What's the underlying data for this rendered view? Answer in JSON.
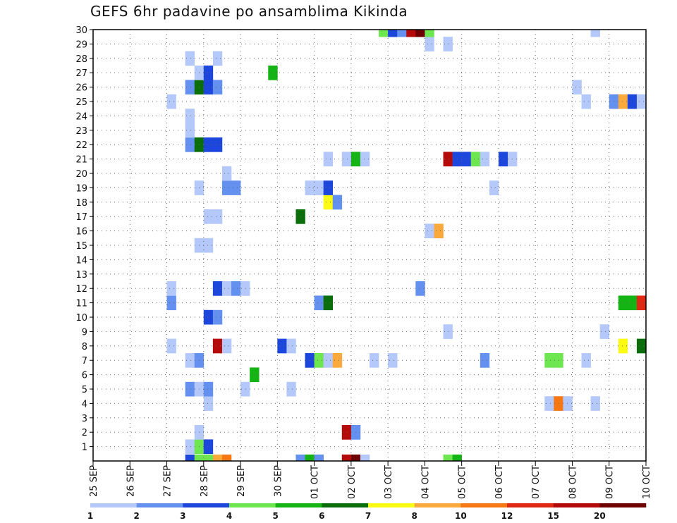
{
  "chart_data": {
    "type": "heatmap",
    "title": "GEFS 6hr padavine po ansamblima Kikinda",
    "y_ticks": [
      "1",
      "2",
      "3",
      "4",
      "5",
      "6",
      "7",
      "8",
      "9",
      "10",
      "11",
      "12",
      "13",
      "14",
      "15",
      "16",
      "17",
      "18",
      "19",
      "20",
      "21",
      "22",
      "23",
      "24",
      "25",
      "26",
      "27",
      "28",
      "29",
      "30"
    ],
    "x_ticks": [
      "25 SEP",
      "26 SEP",
      "27 SEP",
      "28 SEP",
      "29 SEP",
      "30 SEP",
      "01 OCT",
      "02 OCT",
      "03 OCT",
      "04 OCT",
      "05 OCT",
      "06 OCT",
      "07 OCT",
      "08 OCT",
      "09 OCT",
      "10 OCT"
    ],
    "x_range_steps": [
      0,
      60
    ],
    "y_range_members": [
      0,
      30
    ],
    "grid": true,
    "legend_placement": "bottom",
    "legend": {
      "colors": [
        "#b4c8fa",
        "#6490f0",
        "#1c46dc",
        "#6ee650",
        "#14b414",
        "#0a6e0a",
        "#fafa14",
        "#faaa3c",
        "#f57814",
        "#e12814",
        "#b40a0a",
        "#6e0000"
      ],
      "labels": [
        "1",
        "2",
        "3",
        "4",
        "5",
        "6",
        "7",
        "8",
        "10",
        "12",
        "15",
        "20"
      ]
    },
    "cells": [
      {
        "member": 0,
        "step": 10,
        "c": 3
      },
      {
        "member": 0,
        "step": 11,
        "c": 4
      },
      {
        "member": 0,
        "step": 12,
        "c": 4
      },
      {
        "member": 0,
        "step": 13,
        "c": 8
      },
      {
        "member": 0,
        "step": 14,
        "c": 9
      },
      {
        "member": 0,
        "step": 22,
        "c": 2
      },
      {
        "member": 0,
        "step": 23,
        "c": 5
      },
      {
        "member": 0,
        "step": 24,
        "c": 2
      },
      {
        "member": 0,
        "step": 27,
        "c": 11
      },
      {
        "member": 0,
        "step": 28,
        "c": 12
      },
      {
        "member": 0,
        "step": 29,
        "c": 1
      },
      {
        "member": 0,
        "step": 38,
        "c": 4
      },
      {
        "member": 0,
        "step": 39,
        "c": 5
      },
      {
        "member": 1,
        "step": 10,
        "c": 1
      },
      {
        "member": 1,
        "step": 11,
        "c": 4
      },
      {
        "member": 1,
        "step": 12,
        "c": 3
      },
      {
        "member": 2,
        "step": 11,
        "c": 1
      },
      {
        "member": 2,
        "step": 27,
        "c": 11
      },
      {
        "member": 2,
        "step": 28,
        "c": 2
      },
      {
        "member": 4,
        "step": 12,
        "c": 1
      },
      {
        "member": 4,
        "step": 49,
        "c": 1
      },
      {
        "member": 4,
        "step": 50,
        "c": 9
      },
      {
        "member": 4,
        "step": 51,
        "c": 1
      },
      {
        "member": 4,
        "step": 54,
        "c": 1
      },
      {
        "member": 5,
        "step": 10,
        "c": 2
      },
      {
        "member": 5,
        "step": 11,
        "c": 1
      },
      {
        "member": 5,
        "step": 12,
        "c": 2
      },
      {
        "member": 5,
        "step": 16,
        "c": 1
      },
      {
        "member": 5,
        "step": 21,
        "c": 1
      },
      {
        "member": 6,
        "step": 17,
        "c": 5
      },
      {
        "member": 7,
        "step": 10,
        "c": 1
      },
      {
        "member": 7,
        "step": 11,
        "c": 2
      },
      {
        "member": 7,
        "step": 23,
        "c": 3
      },
      {
        "member": 7,
        "step": 24,
        "c": 4
      },
      {
        "member": 7,
        "step": 25,
        "c": 1
      },
      {
        "member": 7,
        "step": 26,
        "c": 8
      },
      {
        "member": 7,
        "step": 30,
        "c": 1
      },
      {
        "member": 7,
        "step": 32,
        "c": 1
      },
      {
        "member": 7,
        "step": 42,
        "c": 2
      },
      {
        "member": 7,
        "step": 49,
        "c": 4
      },
      {
        "member": 7,
        "step": 50,
        "c": 4
      },
      {
        "member": 7,
        "step": 53,
        "c": 1
      },
      {
        "member": 8,
        "step": 8,
        "c": 1
      },
      {
        "member": 8,
        "step": 13,
        "c": 11
      },
      {
        "member": 8,
        "step": 14,
        "c": 1
      },
      {
        "member": 8,
        "step": 20,
        "c": 3
      },
      {
        "member": 8,
        "step": 21,
        "c": 1
      },
      {
        "member": 8,
        "step": 57,
        "c": 7
      },
      {
        "member": 8,
        "step": 59,
        "c": 6
      },
      {
        "member": 9,
        "step": 38,
        "c": 1
      },
      {
        "member": 9,
        "step": 55,
        "c": 1
      },
      {
        "member": 10,
        "step": 12,
        "c": 3
      },
      {
        "member": 10,
        "step": 13,
        "c": 2
      },
      {
        "member": 11,
        "step": 8,
        "c": 2
      },
      {
        "member": 11,
        "step": 24,
        "c": 2
      },
      {
        "member": 11,
        "step": 25,
        "c": 6
      },
      {
        "member": 11,
        "step": 57,
        "c": 5
      },
      {
        "member": 11,
        "step": 58,
        "c": 5
      },
      {
        "member": 11,
        "step": 59,
        "c": 10
      },
      {
        "member": 12,
        "step": 8,
        "c": 1
      },
      {
        "member": 12,
        "step": 13,
        "c": 3
      },
      {
        "member": 12,
        "step": 14,
        "c": 1
      },
      {
        "member": 12,
        "step": 15,
        "c": 2
      },
      {
        "member": 12,
        "step": 16,
        "c": 1
      },
      {
        "member": 12,
        "step": 35,
        "c": 2
      },
      {
        "member": 15,
        "step": 11,
        "c": 1
      },
      {
        "member": 15,
        "step": 12,
        "c": 1
      },
      {
        "member": 16,
        "step": 36,
        "c": 1
      },
      {
        "member": 16,
        "step": 37,
        "c": 8
      },
      {
        "member": 17,
        "step": 12,
        "c": 1
      },
      {
        "member": 17,
        "step": 13,
        "c": 1
      },
      {
        "member": 17,
        "step": 22,
        "c": 6
      },
      {
        "member": 18,
        "step": 25,
        "c": 7
      },
      {
        "member": 18,
        "step": 26,
        "c": 2
      },
      {
        "member": 19,
        "step": 11,
        "c": 1
      },
      {
        "member": 19,
        "step": 14,
        "c": 2
      },
      {
        "member": 19,
        "step": 15,
        "c": 2
      },
      {
        "member": 19,
        "step": 23,
        "c": 1
      },
      {
        "member": 19,
        "step": 24,
        "c": 1
      },
      {
        "member": 19,
        "step": 25,
        "c": 3
      },
      {
        "member": 19,
        "step": 43,
        "c": 1
      },
      {
        "member": 20,
        "step": 14,
        "c": 1
      },
      {
        "member": 21,
        "step": 25,
        "c": 1
      },
      {
        "member": 21,
        "step": 27,
        "c": 1
      },
      {
        "member": 21,
        "step": 28,
        "c": 5
      },
      {
        "member": 21,
        "step": 29,
        "c": 1
      },
      {
        "member": 21,
        "step": 38,
        "c": 11
      },
      {
        "member": 21,
        "step": 39,
        "c": 3
      },
      {
        "member": 21,
        "step": 40,
        "c": 3
      },
      {
        "member": 21,
        "step": 41,
        "c": 4
      },
      {
        "member": 21,
        "step": 42,
        "c": 1
      },
      {
        "member": 21,
        "step": 44,
        "c": 3
      },
      {
        "member": 21,
        "step": 45,
        "c": 1
      },
      {
        "member": 22,
        "step": 10,
        "c": 2
      },
      {
        "member": 22,
        "step": 11,
        "c": 6
      },
      {
        "member": 22,
        "step": 12,
        "c": 3
      },
      {
        "member": 22,
        "step": 13,
        "c": 3
      },
      {
        "member": 23,
        "step": 10,
        "c": 1
      },
      {
        "member": 24,
        "step": 10,
        "c": 1
      },
      {
        "member": 25,
        "step": 8,
        "c": 1
      },
      {
        "member": 25,
        "step": 53,
        "c": 1
      },
      {
        "member": 25,
        "step": 56,
        "c": 2
      },
      {
        "member": 25,
        "step": 57,
        "c": 8
      },
      {
        "member": 25,
        "step": 58,
        "c": 3
      },
      {
        "member": 25,
        "step": 59,
        "c": 1
      },
      {
        "member": 26,
        "step": 10,
        "c": 2
      },
      {
        "member": 26,
        "step": 11,
        "c": 6
      },
      {
        "member": 26,
        "step": 12,
        "c": 3
      },
      {
        "member": 26,
        "step": 13,
        "c": 2
      },
      {
        "member": 26,
        "step": 52,
        "c": 1
      },
      {
        "member": 27,
        "step": 11,
        "c": 1
      },
      {
        "member": 27,
        "step": 12,
        "c": 3
      },
      {
        "member": 27,
        "step": 19,
        "c": 5
      },
      {
        "member": 28,
        "step": 10,
        "c": 1
      },
      {
        "member": 28,
        "step": 13,
        "c": 1
      },
      {
        "member": 29,
        "step": 36,
        "c": 1
      },
      {
        "member": 29,
        "step": 38,
        "c": 1
      },
      {
        "member": 30,
        "step": 31,
        "c": 4
      },
      {
        "member": 30,
        "step": 32,
        "c": 3
      },
      {
        "member": 30,
        "step": 33,
        "c": 2
      },
      {
        "member": 30,
        "step": 34,
        "c": 11
      },
      {
        "member": 30,
        "step": 35,
        "c": 12
      },
      {
        "member": 30,
        "step": 36,
        "c": 4
      },
      {
        "member": 30,
        "step": 54,
        "c": 1
      }
    ]
  }
}
